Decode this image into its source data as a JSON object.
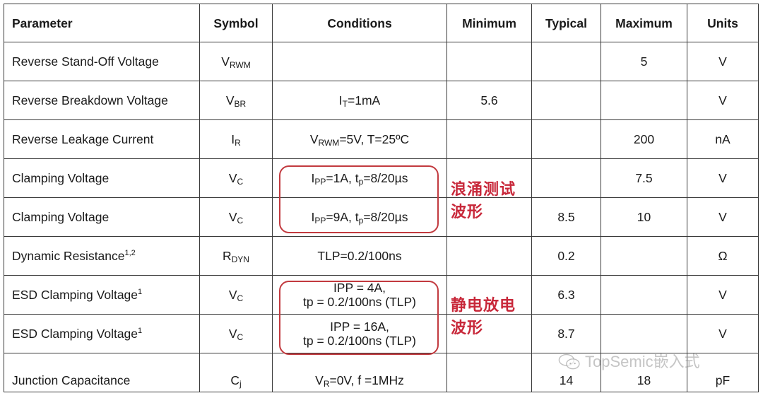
{
  "headers": [
    "Parameter",
    "Symbol",
    "Conditions",
    "Minimum",
    "Typical",
    "Maximum",
    "Units"
  ],
  "rows": [
    {
      "parameter": [
        {
          "t": "Reverse Stand-Off Voltage"
        }
      ],
      "symbol": [
        {
          "t": "V"
        },
        {
          "sub": "RWM"
        }
      ],
      "conditions": [],
      "min": "",
      "typ": "",
      "max": "5",
      "units": "V"
    },
    {
      "parameter": [
        {
          "t": "Reverse Breakdown Voltage"
        }
      ],
      "symbol": [
        {
          "t": "V"
        },
        {
          "sub": "BR"
        }
      ],
      "conditions": [
        {
          "t": "I"
        },
        {
          "sub": "T"
        },
        {
          "t": "=1mA"
        }
      ],
      "min": "5.6",
      "typ": "",
      "max": "",
      "units": "V"
    },
    {
      "parameter": [
        {
          "t": "Reverse Leakage Current"
        }
      ],
      "symbol": [
        {
          "t": "I"
        },
        {
          "sub": "R"
        }
      ],
      "conditions": [
        {
          "t": "V"
        },
        {
          "sub": "RWM"
        },
        {
          "t": "=5V, T=25ºC"
        }
      ],
      "min": "",
      "typ": "",
      "max": "200",
      "units": "nA"
    },
    {
      "parameter": [
        {
          "t": "Clamping Voltage"
        }
      ],
      "symbol": [
        {
          "t": "V"
        },
        {
          "sub": "C"
        }
      ],
      "conditions": [
        {
          "t": "I"
        },
        {
          "sub": "PP"
        },
        {
          "t": "=1A, t"
        },
        {
          "sub": "p"
        },
        {
          "t": "=8/20µs"
        }
      ],
      "min": "",
      "typ": "",
      "max": "7.5",
      "units": "V"
    },
    {
      "parameter": [
        {
          "t": "Clamping Voltage"
        }
      ],
      "symbol": [
        {
          "t": "V"
        },
        {
          "sub": "C"
        }
      ],
      "conditions": [
        {
          "t": "I"
        },
        {
          "sub": "PP"
        },
        {
          "t": "=9A, t"
        },
        {
          "sub": "p"
        },
        {
          "t": "=8/20µs"
        }
      ],
      "min": "",
      "typ": "8.5",
      "max": "10",
      "units": "V"
    },
    {
      "parameter": [
        {
          "t": "Dynamic Resistance"
        },
        {
          "sup": "1,2"
        }
      ],
      "symbol": [
        {
          "t": "R"
        },
        {
          "sub": "DYN"
        }
      ],
      "conditions": [
        {
          "t": "TLP=0.2/100ns"
        }
      ],
      "min": "",
      "typ": "0.2",
      "max": "",
      "units": "Ω"
    },
    {
      "parameter": [
        {
          "t": "ESD Clamping Voltage"
        },
        {
          "sup": "1"
        }
      ],
      "symbol": [
        {
          "t": "V"
        },
        {
          "sub": "C"
        }
      ],
      "conditions": [
        {
          "t": "IPP = 4A,"
        },
        {
          "br": true
        },
        {
          "t": "tp = 0.2/100ns (TLP)"
        }
      ],
      "min": "",
      "typ": "6.3",
      "max": "",
      "units": "V"
    },
    {
      "parameter": [
        {
          "t": "ESD Clamping Voltage"
        },
        {
          "sup": "1"
        }
      ],
      "symbol": [
        {
          "t": "V"
        },
        {
          "sub": "C"
        }
      ],
      "conditions": [
        {
          "t": "IPP = 16A,"
        },
        {
          "br": true
        },
        {
          "t": "tp = 0.2/100ns (TLP)"
        }
      ],
      "min": "",
      "typ": "8.7",
      "max": "",
      "units": "V"
    },
    {
      "parameter": [
        {
          "t": "Junction Capacitance"
        }
      ],
      "symbol": [
        {
          "t": "C"
        },
        {
          "sub": "j"
        }
      ],
      "conditions": [
        {
          "t": "V"
        },
        {
          "sub": "R"
        },
        {
          "t": "=0V, f =1MHz"
        }
      ],
      "min": "",
      "typ": "14",
      "max": "18",
      "units": "pF"
    }
  ],
  "annotations": {
    "surge": [
      "浪涌测试",
      "波形"
    ],
    "esd": [
      "静电放电",
      "波形"
    ],
    "color": "#c8283a"
  },
  "watermark": {
    "icon": "wechat-icon",
    "text": "TopSemic嵌入式"
  }
}
